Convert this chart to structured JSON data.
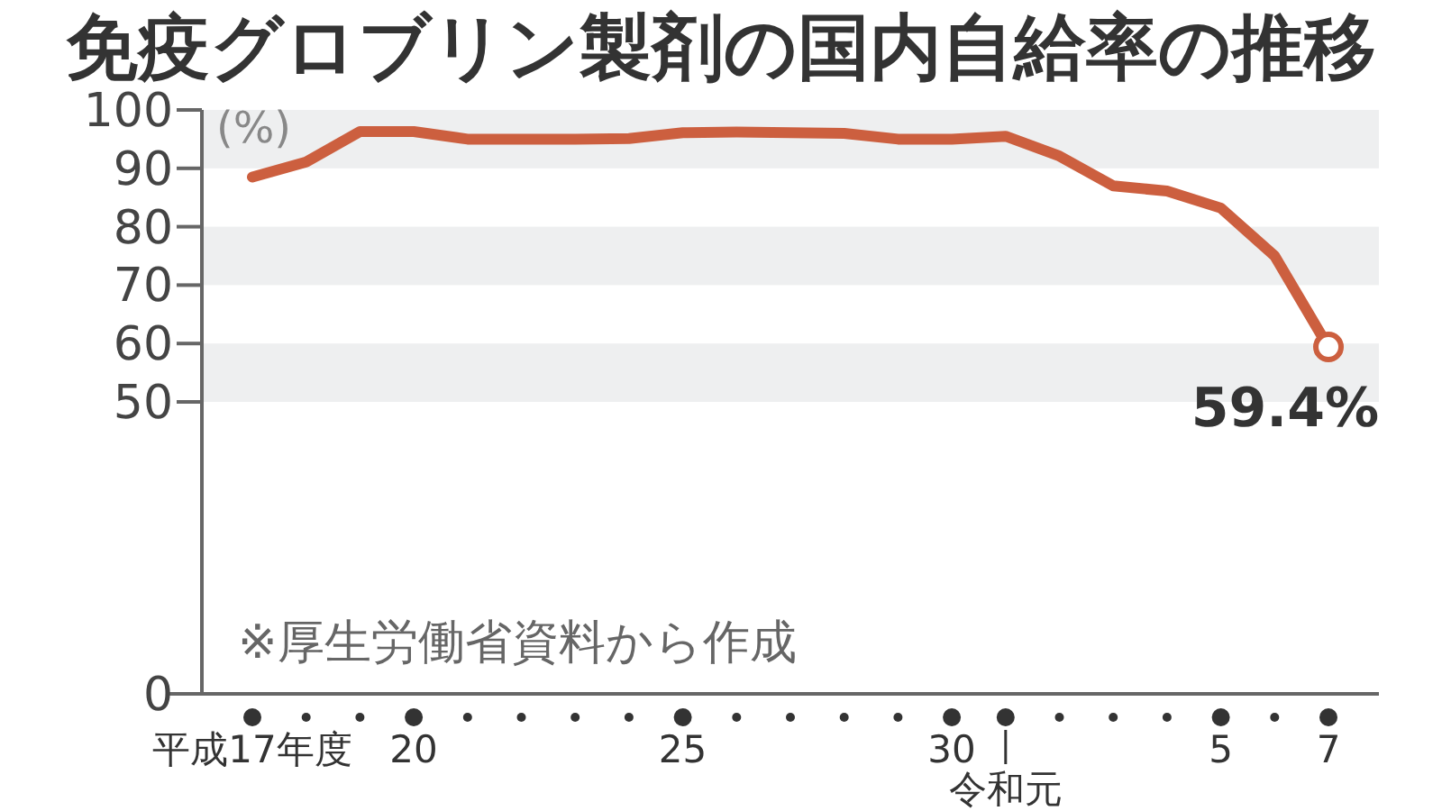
{
  "chart_data": {
    "type": "line",
    "title": "免疫グロブリン製剤の国内自給率の推移",
    "ylabel": "(%)",
    "categories": [
      "平成17年度",
      null,
      null,
      "20",
      null,
      null,
      null,
      null,
      "25",
      null,
      null,
      null,
      null,
      "30",
      "令和元",
      null,
      null,
      null,
      "5",
      null,
      "7"
    ],
    "series": [
      {
        "color": "#cc5f3f",
        "values": [
          88.5,
          91.1,
          96.3,
          96.3,
          95.0,
          95.0,
          95.0,
          95.1,
          96.1,
          96.2,
          96.1,
          96.0,
          95.0,
          95.0,
          95.5,
          92.1,
          87.0,
          86.1,
          83.2,
          75.0,
          59.4
        ],
        "value_labels": [
          null,
          null,
          null,
          null,
          null,
          null,
          null,
          null,
          null,
          null,
          null,
          null,
          null,
          null,
          null,
          null,
          null,
          null,
          null,
          null,
          "59.4%"
        ]
      }
    ],
    "ylim": [
      0,
      100
    ],
    "yticks": [
      0,
      50,
      60,
      70,
      80,
      90,
      100
    ],
    "bands": [
      {
        "axis": "y",
        "from": 50,
        "to": 60,
        "color": "#eeeff0"
      },
      {
        "axis": "y",
        "from": 70,
        "to": 80,
        "color": "#eeeff0"
      },
      {
        "axis": "y",
        "from": 90,
        "to": 100,
        "color": "#eeeff0"
      }
    ],
    "annotations": [
      "※厚生労働省資料から作成"
    ]
  }
}
